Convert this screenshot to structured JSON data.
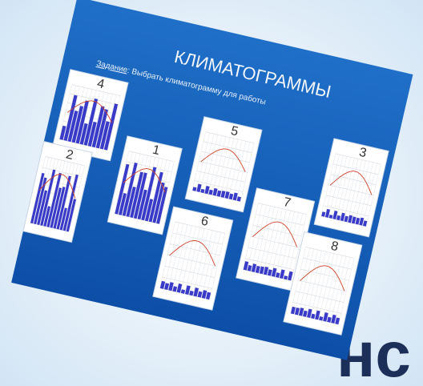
{
  "slide": {
    "title": "КЛИМАТОГРАММЫ",
    "task_label": "Задание",
    "task_text": ": Выбрать климатограмму для работы",
    "cards": [
      {
        "label": "4"
      },
      {
        "label": "2"
      },
      {
        "label": "1"
      },
      {
        "label": "5"
      },
      {
        "label": "6"
      },
      {
        "label": "7"
      },
      {
        "label": "3"
      },
      {
        "label": "8"
      }
    ]
  },
  "background_text": "нс"
}
